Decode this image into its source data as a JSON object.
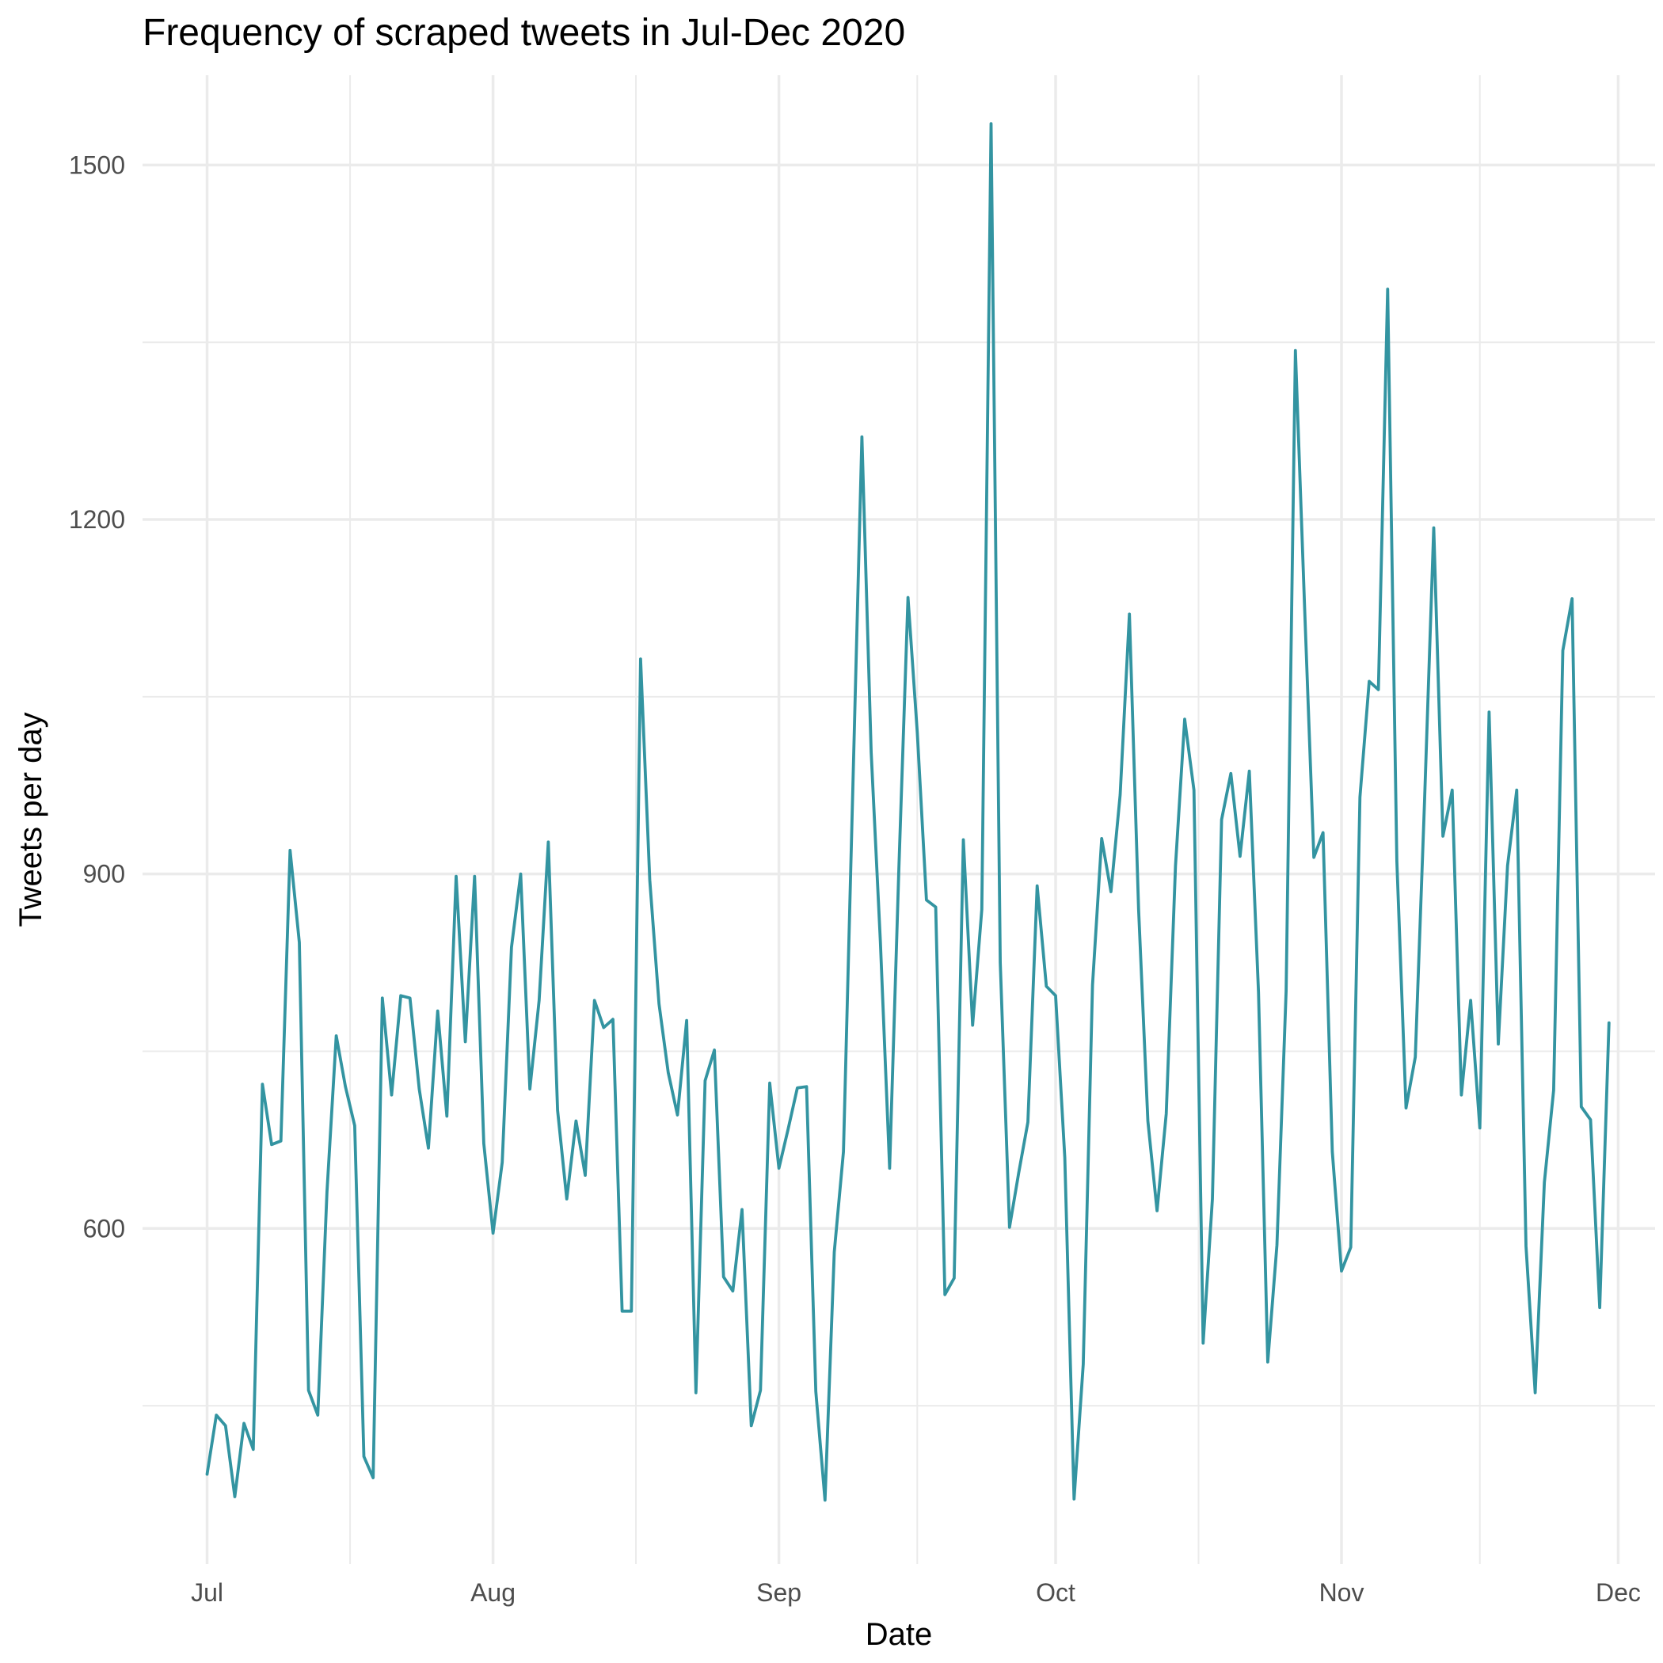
{
  "chart_data": {
    "type": "line",
    "title": "Frequency of scraped tweets in Jul-Dec 2020",
    "xlabel": "Date",
    "ylabel": "Tweets per day",
    "x_ticks": [
      {
        "date": "2020-07-01",
        "label": "Jul"
      },
      {
        "date": "2020-08-01",
        "label": "Aug"
      },
      {
        "date": "2020-09-01",
        "label": "Sep"
      },
      {
        "date": "2020-10-01",
        "label": "Oct"
      },
      {
        "date": "2020-11-01",
        "label": "Nov"
      },
      {
        "date": "2020-12-01",
        "label": "Dec"
      }
    ],
    "y_ticks": [
      600,
      900,
      1200,
      1500
    ],
    "xlim": [
      "2020-06-24",
      "2020-12-05"
    ],
    "ylim": [
      316,
      1576
    ],
    "grid": true,
    "line_color": "#3394a1",
    "series": [
      {
        "x": [
          "2020-07-01",
          "2020-07-02",
          "2020-07-03",
          "2020-07-04",
          "2020-07-05",
          "2020-07-06",
          "2020-07-07",
          "2020-07-08",
          "2020-07-09",
          "2020-07-10",
          "2020-07-11",
          "2020-07-12",
          "2020-07-13",
          "2020-07-14",
          "2020-07-15",
          "2020-07-16",
          "2020-07-17",
          "2020-07-18",
          "2020-07-19",
          "2020-07-20",
          "2020-07-21",
          "2020-07-22",
          "2020-07-23",
          "2020-07-24",
          "2020-07-25",
          "2020-07-26",
          "2020-07-27",
          "2020-07-28",
          "2020-07-29",
          "2020-07-30",
          "2020-07-31",
          "2020-08-01",
          "2020-08-02",
          "2020-08-03",
          "2020-08-04",
          "2020-08-05",
          "2020-08-06",
          "2020-08-07",
          "2020-08-08",
          "2020-08-09",
          "2020-08-10",
          "2020-08-11",
          "2020-08-12",
          "2020-08-13",
          "2020-08-14",
          "2020-08-15",
          "2020-08-16",
          "2020-08-17",
          "2020-08-18",
          "2020-08-19",
          "2020-08-20",
          "2020-08-21",
          "2020-08-22",
          "2020-08-23",
          "2020-08-24",
          "2020-08-25",
          "2020-08-26",
          "2020-08-27",
          "2020-08-28",
          "2020-08-29",
          "2020-08-30",
          "2020-08-31",
          "2020-09-01",
          "2020-09-02",
          "2020-09-03",
          "2020-09-04",
          "2020-09-05",
          "2020-09-06",
          "2020-09-07",
          "2020-09-08",
          "2020-09-09",
          "2020-09-10",
          "2020-09-11",
          "2020-09-12",
          "2020-09-13",
          "2020-09-14",
          "2020-09-15",
          "2020-09-16",
          "2020-09-17",
          "2020-09-18",
          "2020-09-19",
          "2020-09-20",
          "2020-09-21",
          "2020-09-22",
          "2020-09-23",
          "2020-09-24",
          "2020-09-25",
          "2020-09-26",
          "2020-09-27",
          "2020-09-28",
          "2020-09-29",
          "2020-09-30",
          "2020-10-01",
          "2020-10-02",
          "2020-10-03",
          "2020-10-04",
          "2020-10-05",
          "2020-10-06",
          "2020-10-07",
          "2020-10-08",
          "2020-10-09",
          "2020-10-10",
          "2020-10-11",
          "2020-10-12",
          "2020-10-13",
          "2020-10-14",
          "2020-10-15",
          "2020-10-16",
          "2020-10-17",
          "2020-10-18",
          "2020-10-19",
          "2020-10-20",
          "2020-10-21",
          "2020-10-22",
          "2020-10-23",
          "2020-10-24",
          "2020-10-25",
          "2020-10-26",
          "2020-10-27",
          "2020-10-28",
          "2020-10-29",
          "2020-10-30",
          "2020-10-31",
          "2020-11-01",
          "2020-11-02",
          "2020-11-03",
          "2020-11-04",
          "2020-11-05",
          "2020-11-06",
          "2020-11-07",
          "2020-11-08",
          "2020-11-09",
          "2020-11-10",
          "2020-11-11",
          "2020-11-12",
          "2020-11-13",
          "2020-11-14",
          "2020-11-15",
          "2020-11-16",
          "2020-11-17",
          "2020-11-18",
          "2020-11-19",
          "2020-11-20",
          "2020-11-21",
          "2020-11-22",
          "2020-11-23",
          "2020-11-24",
          "2020-11-25",
          "2020-11-26",
          "2020-11-27",
          "2020-11-28",
          "2020-11-29",
          "2020-11-30"
        ],
        "values": [
          392,
          442,
          433,
          373,
          435,
          413,
          722,
          671,
          674,
          920,
          842,
          463,
          442,
          631,
          763,
          720,
          687,
          407,
          389,
          795,
          713,
          797,
          795,
          718,
          668,
          784,
          695,
          898,
          758,
          898,
          672,
          596,
          656,
          838,
          900,
          718,
          793,
          927,
          700,
          625,
          691,
          645,
          793,
          770,
          777,
          530,
          530,
          1082,
          895,
          790,
          732,
          696,
          776,
          461,
          725,
          751,
          559,
          547,
          616,
          433,
          463,
          723,
          651,
          684,
          719,
          720,
          462,
          370,
          580,
          665,
          969,
          1270,
          1003,
          843,
          651,
          903,
          1134,
          1020,
          878,
          872,
          544,
          558,
          929,
          772,
          870,
          1535,
          825,
          601,
          647,
          690,
          890,
          805,
          797,
          660,
          371,
          485,
          806,
          930,
          885,
          967,
          1120,
          870,
          691,
          615,
          697,
          907,
          1031,
          971,
          503,
          625,
          946,
          985,
          915,
          987,
          800,
          487,
          586,
          801,
          1343,
          1126,
          914,
          935,
          665,
          564,
          584,
          965,
          1063,
          1056,
          1395,
          911,
          702,
          745,
          960,
          1193,
          932,
          971,
          713,
          793,
          685,
          1037,
          756,
          907,
          971,
          585,
          461,
          639,
          717,
          1089,
          1133,
          703,
          692,
          533,
          774
        ]
      }
    ]
  }
}
